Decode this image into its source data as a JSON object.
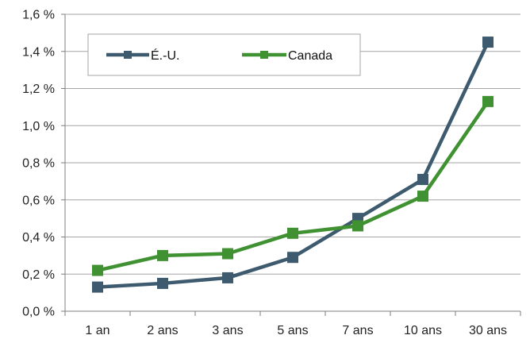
{
  "chart_data": {
    "type": "line",
    "categories": [
      "1 an",
      "2 ans",
      "3 ans",
      "5 ans",
      "7 ans",
      "10 ans",
      "30 ans"
    ],
    "ylim": [
      0.0,
      1.6
    ],
    "y_ticks": [
      "0,0 %",
      "0,2 %",
      "0,4 %",
      "0,6 %",
      "0,8 %",
      "1,0 %",
      "1,2 %",
      "1,4 %",
      "1,6 %"
    ],
    "y_tick_values": [
      0.0,
      0.2,
      0.4,
      0.6,
      0.8,
      1.0,
      1.2,
      1.4,
      1.6
    ],
    "grid": "horizontal",
    "legend_position": "top-left",
    "series": [
      {
        "name": "É.-U.",
        "color": "#3d5a6e",
        "values": [
          0.13,
          0.15,
          0.18,
          0.29,
          0.5,
          0.71,
          1.45
        ]
      },
      {
        "name": "Canada",
        "color": "#3f9131",
        "values": [
          0.22,
          0.3,
          0.31,
          0.42,
          0.46,
          0.62,
          1.13
        ]
      }
    ]
  }
}
